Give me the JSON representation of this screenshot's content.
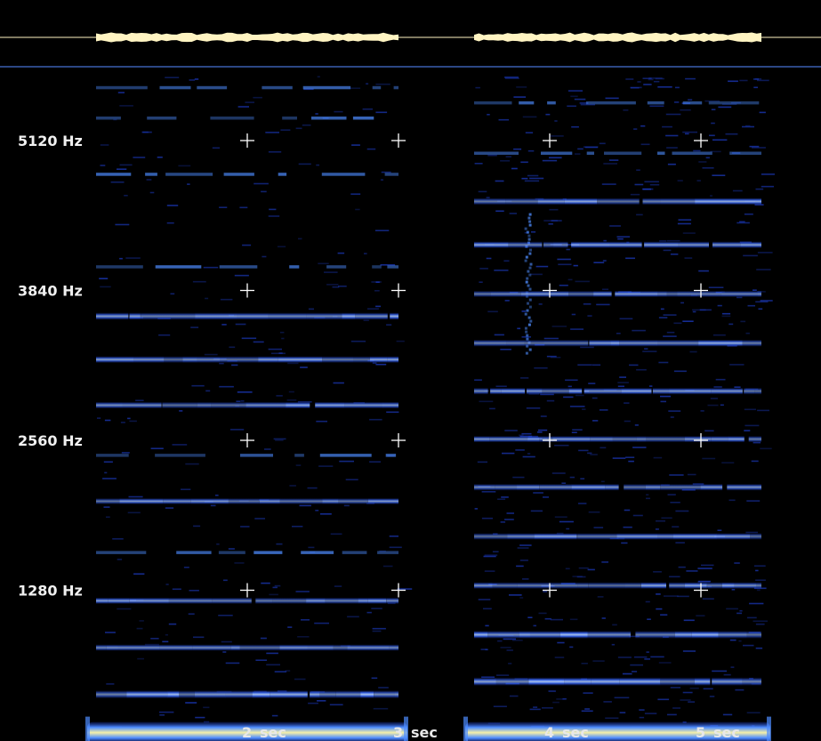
{
  "chart_data": {
    "type": "heatmap",
    "title": "",
    "xlabel": "",
    "ylabel": "",
    "x_unit": "sec",
    "y_unit": "Hz",
    "xlim": [
      1.0,
      5.4
    ],
    "ylim": [
      0,
      5500
    ],
    "y_ticks": [
      {
        "value": 5120,
        "label": "5120 Hz"
      },
      {
        "value": 3840,
        "label": "3840 Hz"
      },
      {
        "value": 2560,
        "label": "2560 Hz"
      },
      {
        "value": 1280,
        "label": "1280 Hz"
      }
    ],
    "x_ticks": [
      {
        "value": 2,
        "label": "2",
        "unit": "sec"
      },
      {
        "value": 3,
        "label": "3",
        "unit": "sec"
      },
      {
        "value": 4,
        "label": "4",
        "unit": "sec"
      },
      {
        "value": 5,
        "label": "5",
        "unit": "sec"
      }
    ],
    "colors": {
      "background": "#000000",
      "band_low": "#1e3fd0",
      "band_mid": "#4d8cff",
      "band_high": "#f5f0a8",
      "waveform": "#fff4c2",
      "divider": "#3a5fb0",
      "grid_marker": "#ffffff"
    },
    "segments": [
      {
        "name": "",
        "start_sec": 1.0,
        "end_sec": 3.0,
        "fundamental_hz": 64,
        "harmonics": [
          {
            "freq_hz": 64,
            "intensity": 1.0
          },
          {
            "freq_hz": 390,
            "intensity": 0.85
          },
          {
            "freq_hz": 790,
            "intensity": 0.55
          },
          {
            "freq_hz": 1190,
            "intensity": 0.55
          },
          {
            "freq_hz": 1600,
            "intensity": 0.35
          },
          {
            "freq_hz": 2040,
            "intensity": 0.5
          },
          {
            "freq_hz": 2430,
            "intensity": 0.35
          },
          {
            "freq_hz": 2860,
            "intensity": 0.6
          },
          {
            "freq_hz": 3250,
            "intensity": 0.6
          },
          {
            "freq_hz": 3620,
            "intensity": 0.7
          },
          {
            "freq_hz": 4040,
            "intensity": 0.4
          },
          {
            "freq_hz": 4830,
            "intensity": 0.35
          },
          {
            "freq_hz": 5310,
            "intensity": 0.3
          },
          {
            "freq_hz": 5570,
            "intensity": 0.3
          }
        ]
      },
      {
        "name": "",
        "start_sec": 3.5,
        "end_sec": 5.4,
        "fundamental_hz": 64,
        "harmonics": [
          {
            "freq_hz": 64,
            "intensity": 1.0
          },
          {
            "freq_hz": 500,
            "intensity": 0.9
          },
          {
            "freq_hz": 900,
            "intensity": 0.8
          },
          {
            "freq_hz": 1320,
            "intensity": 0.6
          },
          {
            "freq_hz": 1740,
            "intensity": 0.6
          },
          {
            "freq_hz": 2160,
            "intensity": 0.6
          },
          {
            "freq_hz": 2570,
            "intensity": 0.55
          },
          {
            "freq_hz": 2980,
            "intensity": 0.6
          },
          {
            "freq_hz": 3390,
            "intensity": 0.65
          },
          {
            "freq_hz": 3810,
            "intensity": 0.55
          },
          {
            "freq_hz": 4230,
            "intensity": 0.6
          },
          {
            "freq_hz": 4600,
            "intensity": 0.65
          },
          {
            "freq_hz": 5010,
            "intensity": 0.45
          },
          {
            "freq_hz": 5440,
            "intensity": 0.45
          }
        ]
      }
    ],
    "grid_markers": [
      {
        "sec": 2,
        "hz": 5120
      },
      {
        "sec": 3,
        "hz": 5120
      },
      {
        "sec": 4,
        "hz": 5120
      },
      {
        "sec": 5,
        "hz": 5120
      },
      {
        "sec": 2,
        "hz": 3840
      },
      {
        "sec": 3,
        "hz": 3840
      },
      {
        "sec": 4,
        "hz": 3840
      },
      {
        "sec": 5,
        "hz": 3840
      },
      {
        "sec": 2,
        "hz": 2560
      },
      {
        "sec": 3,
        "hz": 2560
      },
      {
        "sec": 4,
        "hz": 2560
      },
      {
        "sec": 5,
        "hz": 2560
      },
      {
        "sec": 2,
        "hz": 1280
      },
      {
        "sec": 3,
        "hz": 1280
      },
      {
        "sec": 4,
        "hz": 1280
      },
      {
        "sec": 5,
        "hz": 1280
      }
    ]
  }
}
